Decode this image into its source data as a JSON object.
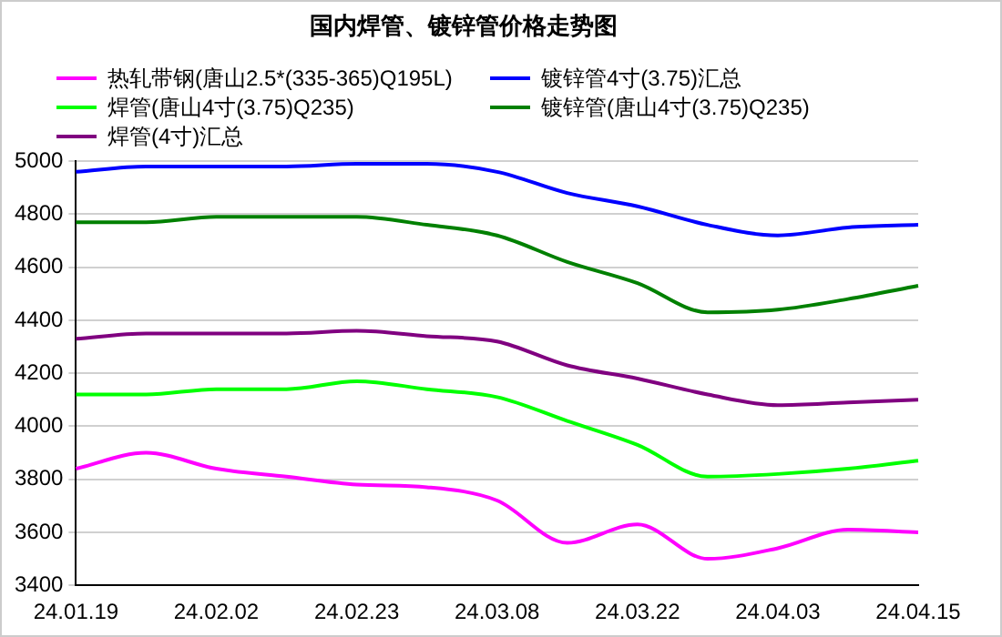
{
  "chart_data": {
    "type": "line",
    "title": "国内焊管、镀锌管价格走势图",
    "categories": [
      "24.01.19",
      null,
      "24.02.02",
      null,
      "24.02.23",
      null,
      "24.03.08",
      null,
      "24.03.22",
      null,
      "24.04.03",
      null,
      "24.04.15"
    ],
    "series": [
      {
        "name": "热轧带钢(唐山2.5*(335-365)Q195L)",
        "color": "#ff00ff",
        "values": [
          3840,
          3900,
          3840,
          3810,
          3780,
          3770,
          3720,
          3560,
          3630,
          3500,
          3540,
          3610,
          3600
        ]
      },
      {
        "name": "镀锌管4寸(3.75)汇总",
        "color": "#0000ff",
        "values": [
          4960,
          4980,
          4980,
          4980,
          4990,
          4990,
          4960,
          4880,
          4830,
          4760,
          4720,
          4750,
          4760
        ]
      },
      {
        "name": "焊管(唐山4寸(3.75)Q235)",
        "color": "#00ff00",
        "values": [
          4120,
          4120,
          4140,
          4140,
          4170,
          4140,
          4110,
          4020,
          3930,
          3810,
          3820,
          3840,
          3870
        ]
      },
      {
        "name": "镀锌管(唐山4寸(3.75)Q235)",
        "color": "#008000",
        "values": [
          4770,
          4770,
          4790,
          4790,
          4790,
          4760,
          4720,
          4620,
          4540,
          4430,
          4440,
          4480,
          4530
        ]
      },
      {
        "name": "焊管(4寸)汇总",
        "color": "#800080",
        "values": [
          4330,
          4350,
          4350,
          4350,
          4360,
          4340,
          4320,
          4230,
          4180,
          4120,
          4080,
          4090,
          4100
        ]
      }
    ],
    "ylim": [
      3400,
      5000
    ],
    "yticks": [
      3400,
      3600,
      3800,
      4000,
      4200,
      4400,
      4600,
      4800,
      5000
    ],
    "grid": "y",
    "legend": "top left",
    "marker": "none",
    "line_style": "solid"
  }
}
